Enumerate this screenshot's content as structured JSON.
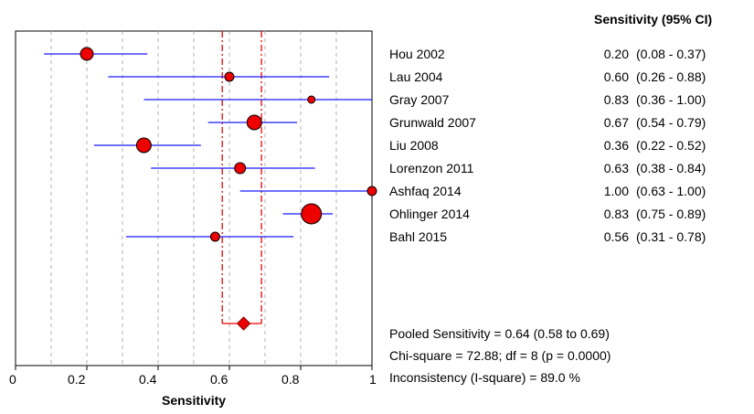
{
  "chart_data": {
    "type": "forest",
    "xlabel": "Sensitivity",
    "xlim": [
      0,
      1
    ],
    "xticks": [
      "0",
      "0.2",
      "0.4",
      "0.6",
      "0.8",
      "1"
    ],
    "header": "Sensitivity (95% CI)",
    "studies": [
      {
        "name": "Hou 2002",
        "est": 0.2,
        "lo": 0.08,
        "hi": 0.37,
        "est_label": "0.20",
        "ci_label": "(0.08 - 0.37)",
        "marker": 7
      },
      {
        "name": "Lau 2004",
        "est": 0.6,
        "lo": 0.26,
        "hi": 0.88,
        "est_label": "0.60",
        "ci_label": "(0.26 - 0.88)",
        "marker": 5
      },
      {
        "name": "Gray  2007",
        "est": 0.83,
        "lo": 0.36,
        "hi": 1.0,
        "est_label": "0.83",
        "ci_label": "(0.36 - 1.00)",
        "marker": 4
      },
      {
        "name": "Grunwald 2007",
        "est": 0.67,
        "lo": 0.54,
        "hi": 0.79,
        "est_label": "0.67",
        "ci_label": "(0.54 - 0.79)",
        "marker": 8
      },
      {
        "name": "Liu 2008",
        "est": 0.36,
        "lo": 0.22,
        "hi": 0.52,
        "est_label": "0.36",
        "ci_label": "(0.22 - 0.52)",
        "marker": 8
      },
      {
        "name": "Lorenzon 2011",
        "est": 0.63,
        "lo": 0.38,
        "hi": 0.84,
        "est_label": "0.63",
        "ci_label": "(0.38 - 0.84)",
        "marker": 6
      },
      {
        "name": "Ashfaq 2014",
        "est": 1.0,
        "lo": 0.63,
        "hi": 1.0,
        "est_label": "1.00",
        "ci_label": "(0.63 - 1.00)",
        "marker": 5
      },
      {
        "name": "Ohlinger 2014",
        "est": 0.83,
        "lo": 0.75,
        "hi": 0.89,
        "est_label": "0.83",
        "ci_label": "(0.75 - 0.89)",
        "marker": 11
      },
      {
        "name": "Bahl 2015",
        "est": 0.56,
        "lo": 0.31,
        "hi": 0.78,
        "est_label": "0.56",
        "ci_label": "(0.31 - 0.78)",
        "marker": 5
      }
    ],
    "pooled": {
      "est": 0.64,
      "lo": 0.58,
      "hi": 0.69
    },
    "stats": [
      "Pooled Sensitivity = 0.64 (0.58 to 0.69)",
      "Chi-square = 72.88; df =  8 (p = 0.0000)",
      "Inconsistency (I-square) = 89.0 %"
    ],
    "grid": true,
    "colors": {
      "ci_line": "#1a1aff",
      "marker_fill": "#ee0000",
      "pooled_line": "#ee0000",
      "grid": "#b0b0b0"
    }
  }
}
